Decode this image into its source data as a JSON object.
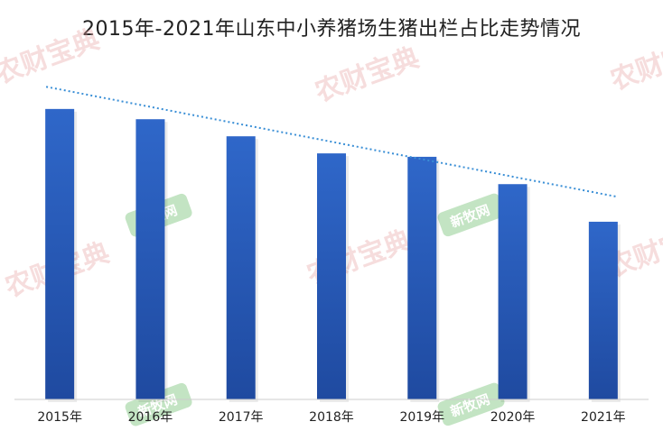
{
  "chart_data": {
    "type": "bar",
    "title": "2015年-2021年山东中小养猪场生猪出栏占比走势情况",
    "categories": [
      "2015年",
      "2016年",
      "2017年",
      "2018年",
      "2019年",
      "2020年",
      "2021年"
    ],
    "values": [
      85,
      82,
      77,
      72,
      71,
      63,
      52
    ],
    "ylim": [
      0,
      100
    ],
    "trendline": {
      "style": "dotted",
      "type": "linear"
    },
    "grid": false,
    "legend": "none",
    "colors": {
      "bar_top": "#2f67c9",
      "bar_bottom": "#1f4aa0",
      "trendline": "#3a8fd6",
      "axis": "#cccccc"
    }
  },
  "watermarks": {
    "large_text": "农财宝典",
    "badge_text": "新牧网"
  }
}
